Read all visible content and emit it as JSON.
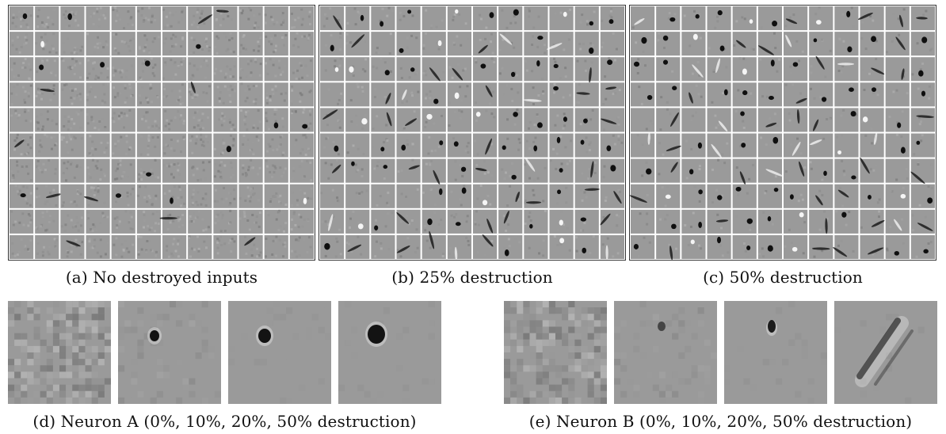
{
  "figure": {
    "panels": [
      {
        "id": "a",
        "caption": "(a) No destroyed inputs",
        "rows": 10,
        "cols": 12,
        "blob_density": 0.25,
        "noise": 0.9
      },
      {
        "id": "b",
        "caption": "(b) 25% destruction",
        "rows": 10,
        "cols": 12,
        "blob_density": 0.85,
        "noise": 0.35
      },
      {
        "id": "c",
        "caption": "(c) 50% destruction",
        "rows": 10,
        "cols": 12,
        "blob_density": 0.95,
        "noise": 0.2
      }
    ],
    "neuron_a": {
      "caption": "(d) Neuron A (0%, 10%, 20%, 50% destruction)",
      "tiles": [
        "0%",
        "10%",
        "20%",
        "50%"
      ]
    },
    "neuron_b": {
      "caption": "(e) Neuron B (0%, 10%, 20%, 50% destruction)",
      "tiles": [
        "0%",
        "10%",
        "20%",
        "50%"
      ]
    },
    "colors": {
      "tile_bg": "#9a9a9a",
      "grid_line": "#ffffff",
      "dark": "#000000",
      "light": "#ffffff"
    }
  }
}
